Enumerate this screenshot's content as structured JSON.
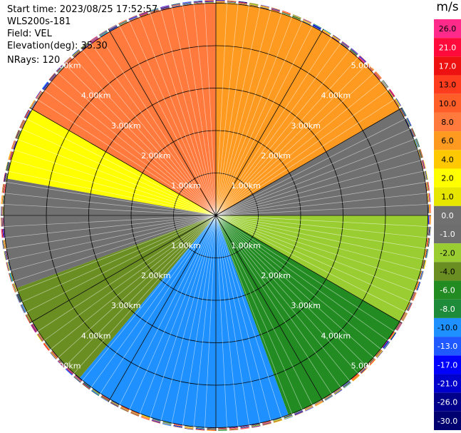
{
  "info": {
    "start_time": "Start time: 2023/08/25 17:52:57",
    "instrument": "WLS200s-181",
    "field": "Field: VEL",
    "elevation": "Elevation(deg): 35.30",
    "nrays": "NRays: 120"
  },
  "colorbar": {
    "unit": "m/s",
    "levels": [
      "26.0",
      "21.0",
      "17.0",
      "13.0",
      "10.0",
      "8.0",
      "6.0",
      "4.0",
      "2.0",
      "1.0",
      "0.0",
      "-1.0",
      "-2.0",
      "-4.0",
      "-6.0",
      "-8.0",
      "-10.0",
      "-13.0",
      "-17.0",
      "-21.0",
      "-26.0",
      "-30.0"
    ],
    "colors": [
      "#ff2a8a",
      "#ff0a3a",
      "#ee1111",
      "#ff3c1e",
      "#ff5e28",
      "#ff7a3c",
      "#ff9a20",
      "#ffc800",
      "#ffff00",
      "#e6e600",
      "#707070",
      "#6e6e6e",
      "#9acd32",
      "#6b8e23",
      "#228b22",
      "#1e8b3a",
      "#1e90ff",
      "#1e5aff",
      "#0000ff",
      "#0000cd",
      "#00008b",
      "#000070"
    ]
  },
  "chart_data": {
    "type": "ppi",
    "field": "VEL",
    "unit": "m/s",
    "nrays": 120,
    "elevation_deg": 35.3,
    "range_rings_km": [
      1.0,
      2.0,
      3.0,
      4.0,
      5.0
    ],
    "ring_labels": [
      "1.00km",
      "2.00km",
      "3.00km",
      "4.00km",
      "5.00km"
    ],
    "spokes_deg": [
      0,
      30,
      60,
      90,
      120,
      150,
      180,
      210,
      240,
      270,
      300,
      330
    ],
    "sectors": [
      {
        "azimuth_range_deg": [
          -60,
          0
        ],
        "color": "#ff7a3c"
      },
      {
        "azimuth_range_deg": [
          0,
          60
        ],
        "color": "#ff9a20"
      },
      {
        "azimuth_range_deg": [
          60,
          90
        ],
        "color": "#707070"
      },
      {
        "azimuth_range_deg": [
          90,
          120
        ],
        "color": "#9acd32"
      },
      {
        "azimuth_range_deg": [
          120,
          160
        ],
        "color": "#228b22"
      },
      {
        "azimuth_range_deg": [
          160,
          220
        ],
        "color": "#1e90ff"
      },
      {
        "azimuth_range_deg": [
          220,
          250
        ],
        "color": "#6b8e23"
      },
      {
        "azimuth_range_deg": [
          250,
          280
        ],
        "color": "#707070"
      },
      {
        "azimuth_range_deg": [
          280,
          300
        ],
        "color": "#ffff00"
      }
    ]
  }
}
